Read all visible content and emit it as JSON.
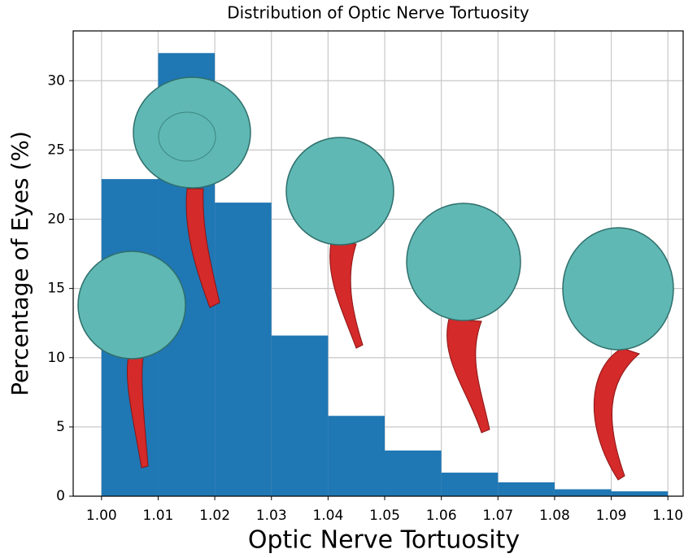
{
  "chart_data": {
    "type": "histogram",
    "title": "Distribution of Optic Nerve Tortuosity",
    "x_label": "Optic Nerve Tortuosity",
    "y_label": "Percentage of Eyes (%)",
    "bins": [
      1.0,
      1.01,
      1.02,
      1.03,
      1.04,
      1.05,
      1.06,
      1.07,
      1.08,
      1.09,
      1.1
    ],
    "values": [
      22.9,
      32.0,
      21.2,
      11.6,
      5.8,
      3.3,
      1.7,
      1.0,
      0.5,
      0.35
    ],
    "color": "#1f77b4",
    "xlim": [
      0.995,
      1.1027
    ],
    "ylim": [
      0,
      33.6
    ],
    "xticks": [
      {
        "value": 1.0,
        "label": "1.00"
      },
      {
        "value": 1.01,
        "label": "1.01"
      },
      {
        "value": 1.02,
        "label": "1.02"
      },
      {
        "value": 1.03,
        "label": "1.03"
      },
      {
        "value": 1.04,
        "label": "1.04"
      },
      {
        "value": 1.05,
        "label": "1.05"
      },
      {
        "value": 1.06,
        "label": "1.06"
      },
      {
        "value": 1.07,
        "label": "1.07"
      },
      {
        "value": 1.08,
        "label": "1.08"
      },
      {
        "value": 1.09,
        "label": "1.09"
      },
      {
        "value": 1.1,
        "label": "1.10"
      }
    ],
    "yticks": [
      0,
      5,
      10,
      15,
      20,
      25,
      30
    ],
    "grid": true
  }
}
